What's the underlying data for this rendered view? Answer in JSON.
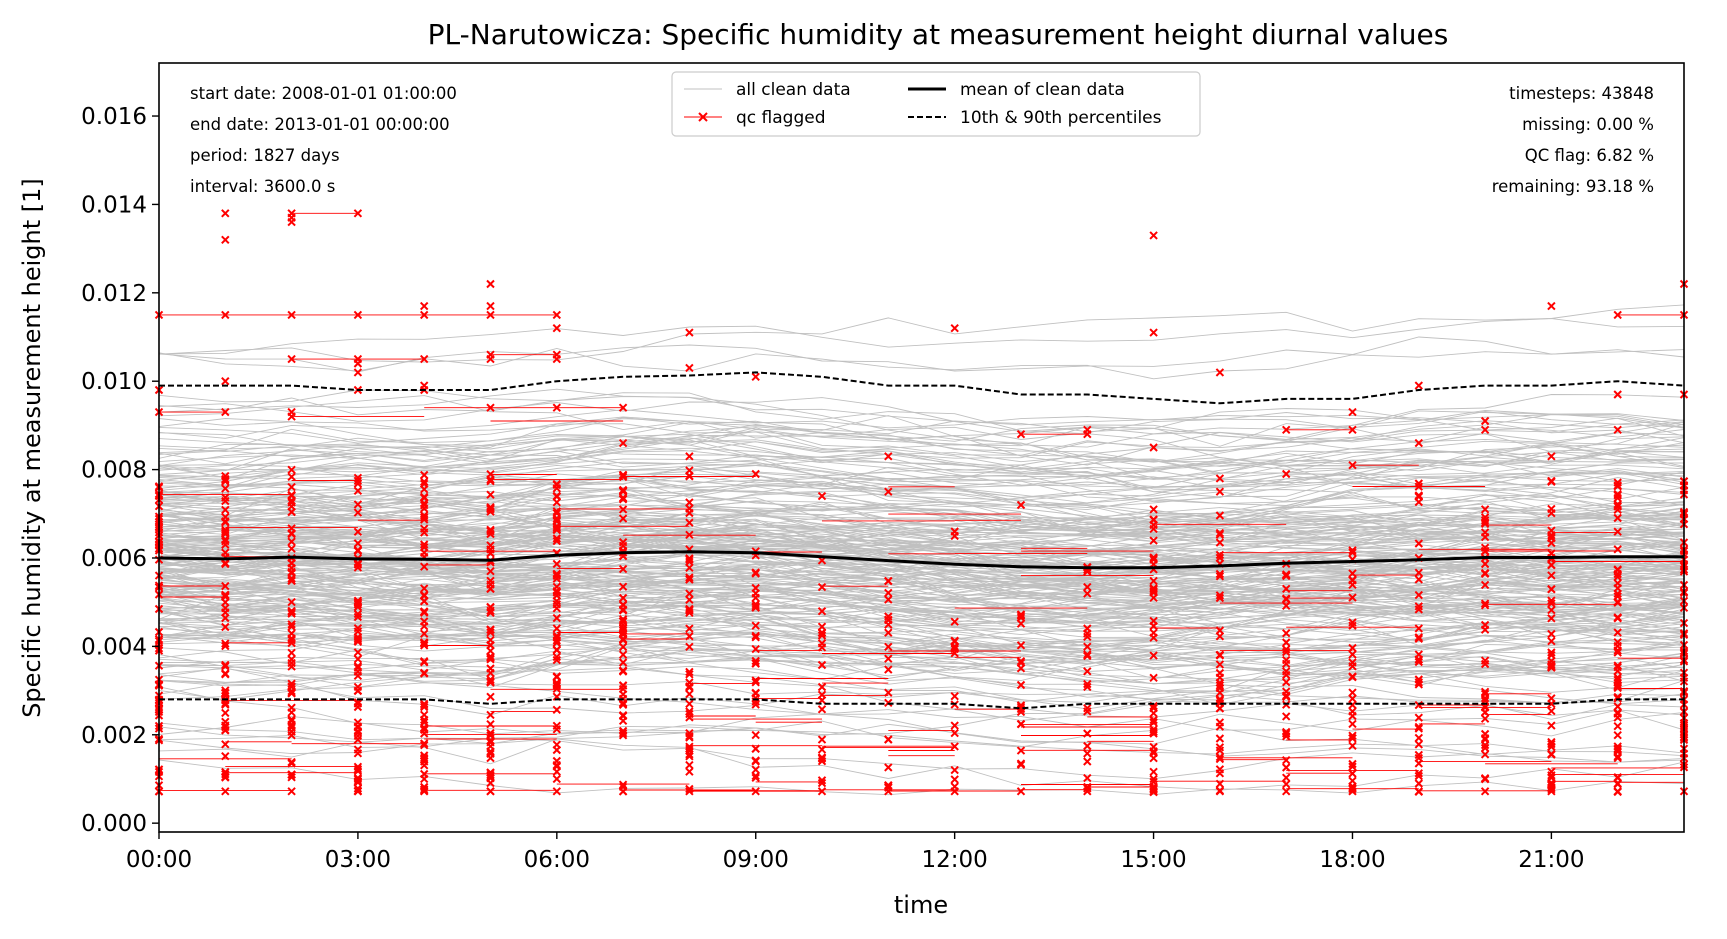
{
  "chart_data": {
    "type": "line",
    "title": "PL-Narutowicza: Specific humidity at measurement height diurnal values",
    "xlabel": "time",
    "ylabel": "Specific humidity at measurement height [1]",
    "xlim": [
      0,
      23
    ],
    "ylim": [
      -0.0002,
      0.0172
    ],
    "x_ticks": [
      {
        "value": 0,
        "label": "00:00"
      },
      {
        "value": 3,
        "label": "03:00"
      },
      {
        "value": 6,
        "label": "06:00"
      },
      {
        "value": 9,
        "label": "09:00"
      },
      {
        "value": 12,
        "label": "12:00"
      },
      {
        "value": 15,
        "label": "15:00"
      },
      {
        "value": 18,
        "label": "18:00"
      },
      {
        "value": 21,
        "label": "21:00"
      }
    ],
    "y_ticks": [
      {
        "value": 0.0,
        "label": "0.000"
      },
      {
        "value": 0.002,
        "label": "0.002"
      },
      {
        "value": 0.004,
        "label": "0.004"
      },
      {
        "value": 0.006,
        "label": "0.006"
      },
      {
        "value": 0.008,
        "label": "0.008"
      },
      {
        "value": 0.01,
        "label": "0.010"
      },
      {
        "value": 0.012,
        "label": "0.012"
      },
      {
        "value": 0.014,
        "label": "0.014"
      },
      {
        "value": 0.016,
        "label": "0.016"
      }
    ],
    "grid": false,
    "legend_position": "top-center",
    "legend": [
      {
        "label": "all clean data",
        "style": "thin-gray-line"
      },
      {
        "label": "qc flagged",
        "style": "red-line-x-marker"
      },
      {
        "label": "mean of clean data",
        "style": "thick-black-line"
      },
      {
        "label": "10th & 90th percentiles",
        "style": "dashed-black-line"
      }
    ],
    "annotations_left": [
      "start date: 2008-01-01 01:00:00",
      "end date: 2013-01-01 00:00:00",
      "period: 1827 days",
      "interval: 3600.0 s"
    ],
    "annotations_right": [
      "timesteps: 43848",
      "missing: 0.00 %",
      "QC flag: 6.82 %",
      "remaining: 93.18 %"
    ],
    "x": [
      0,
      1,
      2,
      3,
      4,
      5,
      6,
      7,
      8,
      9,
      10,
      11,
      12,
      13,
      14,
      15,
      16,
      17,
      18,
      19,
      20,
      21,
      22,
      23
    ],
    "series": [
      {
        "name": "mean of clean data",
        "color": "#000000",
        "values": [
          0.006,
          0.00598,
          0.00602,
          0.00598,
          0.00597,
          0.00595,
          0.00606,
          0.00612,
          0.00614,
          0.00612,
          0.00603,
          0.00594,
          0.00586,
          0.0058,
          0.00578,
          0.00578,
          0.00582,
          0.00588,
          0.00592,
          0.00596,
          0.00601,
          0.00601,
          0.00603,
          0.00603
        ]
      },
      {
        "name": "10th & 90th percentiles",
        "color": "#000000",
        "values": [
          0.0099,
          0.0099,
          0.0099,
          0.0098,
          0.0098,
          0.0098,
          0.01,
          0.0101,
          0.01013,
          0.0102,
          0.0101,
          0.0099,
          0.0099,
          0.0097,
          0.0097,
          0.0096,
          0.0095,
          0.0096,
          0.0096,
          0.0098,
          0.0099,
          0.0099,
          0.01,
          0.0099
        ]
      },
      {
        "name": "10th & 90th percentiles",
        "color": "#000000",
        "values": [
          0.0028,
          0.0028,
          0.0028,
          0.0028,
          0.0028,
          0.0027,
          0.0028,
          0.0028,
          0.0028,
          0.0028,
          0.0027,
          0.0027,
          0.0027,
          0.0026,
          0.0027,
          0.0027,
          0.0027,
          0.0027,
          0.0027,
          0.0027,
          0.0027,
          0.0027,
          0.0028,
          0.0028
        ]
      }
    ],
    "qc_flagged_extremes": [
      {
        "x": 0,
        "values": [
          0.0115,
          0.0098,
          0.0093
        ]
      },
      {
        "x": 1,
        "values": [
          0.0138,
          0.0132,
          0.0115,
          0.01,
          0.0093
        ]
      },
      {
        "x": 2,
        "values": [
          0.0138,
          0.0137,
          0.0136,
          0.0115,
          0.0105,
          0.0093,
          0.0092
        ]
      },
      {
        "x": 3,
        "values": [
          0.0138,
          0.0115,
          0.0105,
          0.0104,
          0.0102,
          0.0098
        ]
      },
      {
        "x": 4,
        "values": [
          0.0117,
          0.0115,
          0.0105,
          0.0099,
          0.0098
        ]
      },
      {
        "x": 5,
        "values": [
          0.0122,
          0.0117,
          0.0115,
          0.0106,
          0.0105,
          0.0094
        ]
      },
      {
        "x": 6,
        "values": [
          0.0115,
          0.0112,
          0.0106,
          0.0105,
          0.0094
        ]
      },
      {
        "x": 7,
        "values": [
          0.0094,
          0.0086
        ]
      },
      {
        "x": 8,
        "values": [
          0.0111,
          0.0103,
          0.0083
        ]
      },
      {
        "x": 9,
        "values": [
          0.0101,
          0.0079
        ]
      },
      {
        "x": 10,
        "values": [
          0.0074
        ]
      },
      {
        "x": 11,
        "values": [
          0.0083,
          0.0075
        ]
      },
      {
        "x": 12,
        "values": [
          0.0112,
          0.0066,
          0.0065
        ]
      },
      {
        "x": 13,
        "values": [
          0.0088,
          0.0072
        ]
      },
      {
        "x": 14,
        "values": [
          0.0089,
          0.0088
        ]
      },
      {
        "x": 15,
        "values": [
          0.0133,
          0.0111,
          0.0085,
          0.0071
        ]
      },
      {
        "x": 16,
        "values": [
          0.0102,
          0.0078,
          0.0075
        ]
      },
      {
        "x": 17,
        "values": [
          0.0089,
          0.0079
        ]
      },
      {
        "x": 18,
        "values": [
          0.0093,
          0.0089,
          0.0081
        ]
      },
      {
        "x": 19,
        "values": [
          0.0099,
          0.0086
        ]
      },
      {
        "x": 20,
        "values": [
          0.0091,
          0.0089
        ]
      },
      {
        "x": 21,
        "values": [
          0.0117,
          0.0083
        ]
      },
      {
        "x": 22,
        "values": [
          0.0115,
          0.0097,
          0.0089
        ]
      },
      {
        "x": 23,
        "values": [
          0.0122,
          0.0115,
          0.0097
        ]
      }
    ]
  }
}
